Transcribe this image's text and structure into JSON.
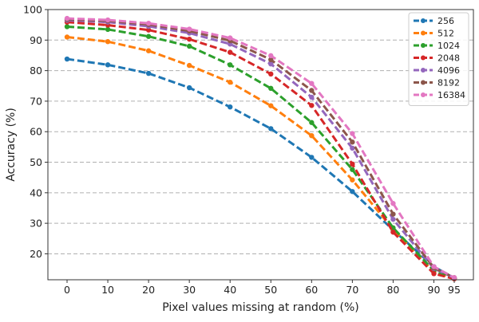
{
  "chart_data": {
    "type": "line",
    "xlabel": "Pixel values missing at random (%)",
    "ylabel": "Accuracy (%)",
    "x": [
      0,
      10,
      20,
      30,
      40,
      50,
      60,
      70,
      80,
      90,
      95
    ],
    "x_ticks": [
      0,
      10,
      20,
      30,
      40,
      50,
      60,
      70,
      80,
      90,
      95
    ],
    "y_ticks": [
      20,
      30,
      40,
      50,
      60,
      70,
      80,
      90,
      100
    ],
    "xlim": [
      -4.7,
      99.7
    ],
    "ylim": [
      11.5,
      100
    ],
    "grid": "horizontal dashed",
    "legend_position": "top-right",
    "line_style": "dashed",
    "series": [
      {
        "name": "256",
        "color": "#1f77b4",
        "values": [
          83.8,
          81.9,
          79.1,
          74.4,
          68.1,
          61.0,
          51.6,
          40.4,
          27.8,
          15.8,
          12.0
        ]
      },
      {
        "name": "512",
        "color": "#ff7f0e",
        "values": [
          91.0,
          89.5,
          86.5,
          81.7,
          76.2,
          68.5,
          58.7,
          44.2,
          28.0,
          14.1,
          11.8
        ]
      },
      {
        "name": "1024",
        "color": "#2ca02c",
        "values": [
          94.4,
          93.5,
          91.2,
          88.0,
          81.9,
          74.2,
          63.0,
          47.6,
          28.5,
          14.5,
          11.9
        ]
      },
      {
        "name": "2048",
        "color": "#d62728",
        "values": [
          95.9,
          94.9,
          93.3,
          90.3,
          86.0,
          78.9,
          68.6,
          49.4,
          27.1,
          13.5,
          11.8
        ]
      },
      {
        "name": "4096",
        "color": "#9467bd",
        "values": [
          96.5,
          95.9,
          94.5,
          92.3,
          88.7,
          82.2,
          71.3,
          54.6,
          31.3,
          15.2,
          12.1
        ]
      },
      {
        "name": "8192",
        "color": "#8c564b",
        "values": [
          96.8,
          96.3,
          95.1,
          93.0,
          89.8,
          83.6,
          73.5,
          56.6,
          33.0,
          15.4,
          12.2
        ]
      },
      {
        "name": "16384",
        "color": "#e377c2",
        "values": [
          97.1,
          96.6,
          95.5,
          93.6,
          90.7,
          84.9,
          75.8,
          59.4,
          36.5,
          15.8,
          12.2
        ]
      }
    ]
  }
}
